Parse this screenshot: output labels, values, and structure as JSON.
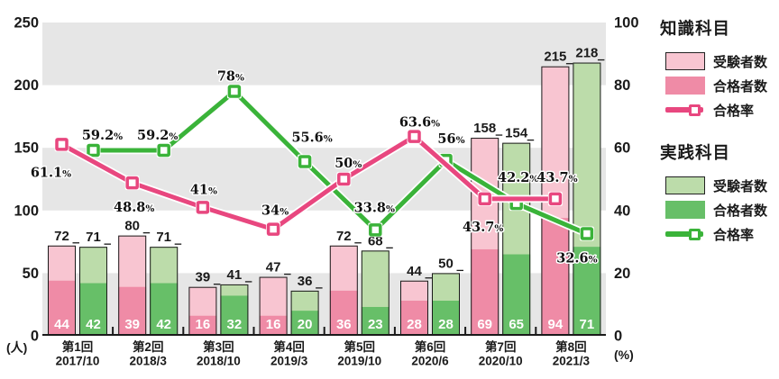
{
  "chart_data": {
    "type": "bar+line",
    "categories": [
      {
        "session": "第1回",
        "date": "2017/10"
      },
      {
        "session": "第2回",
        "date": "2018/3"
      },
      {
        "session": "第3回",
        "date": "2018/10"
      },
      {
        "session": "第4回",
        "date": "2019/3"
      },
      {
        "session": "第5回",
        "date": "2019/10"
      },
      {
        "session": "第6回",
        "date": "2020/6"
      },
      {
        "session": "第7回",
        "date": "2020/10"
      },
      {
        "session": "第8回",
        "date": "2021/3"
      }
    ],
    "bar_series": [
      {
        "id": "knowledge",
        "name": "知識科目",
        "examinees": [
          72,
          80,
          39,
          47,
          72,
          44,
          158,
          215
        ],
        "passers": [
          44,
          39,
          16,
          16,
          36,
          28,
          69,
          94
        ],
        "pass_rate": [
          61.1,
          48.8,
          41,
          34,
          50,
          63.6,
          43.7,
          43.7
        ]
      },
      {
        "id": "practice",
        "name": "実践科目",
        "examinees": [
          71,
          71,
          41,
          36,
          68,
          50,
          154,
          218
        ],
        "passers": [
          42,
          42,
          32,
          20,
          23,
          28,
          65,
          71
        ],
        "pass_rate": [
          59.2,
          59.2,
          78,
          55.6,
          33.8,
          56,
          42.2,
          32.6
        ]
      }
    ],
    "y_axis_left": {
      "unit": "(人)",
      "ticks": [
        "250",
        "200",
        "150",
        "100",
        "50",
        "0"
      ],
      "max": 250
    },
    "y_axis_right": {
      "unit": "(%)",
      "ticks": [
        "100",
        "80",
        "60",
        "40",
        "20",
        "0"
      ],
      "max": 100
    },
    "grid": "alternating horizontal gray bands",
    "legend_position": "right"
  },
  "legend": {
    "groups": [
      {
        "title": "知識科目",
        "items": [
          {
            "label": "受験者数",
            "swatch": "knowledge-examinees"
          },
          {
            "label": "合格者数",
            "swatch": "knowledge-passers"
          },
          {
            "label": "合格率",
            "swatch": "knowledge-line"
          }
        ]
      },
      {
        "title": "実践科目",
        "items": [
          {
            "label": "受験者数",
            "swatch": "practice-examinees"
          },
          {
            "label": "合格者数",
            "swatch": "practice-passers"
          },
          {
            "label": "合格率",
            "swatch": "practice-line"
          }
        ]
      }
    ]
  },
  "colors": {
    "knowledge_examinees": "#f8c5d1",
    "knowledge_passers": "#ef8ba6",
    "knowledge_line": "#e8477f",
    "practice_examinees": "#bcdcaa",
    "practice_passers": "#67bf68",
    "practice_line": "#3ab339",
    "band": "#e6e6e6",
    "ink": "#1a1a1a",
    "in_bar_text": "#ffffff"
  }
}
